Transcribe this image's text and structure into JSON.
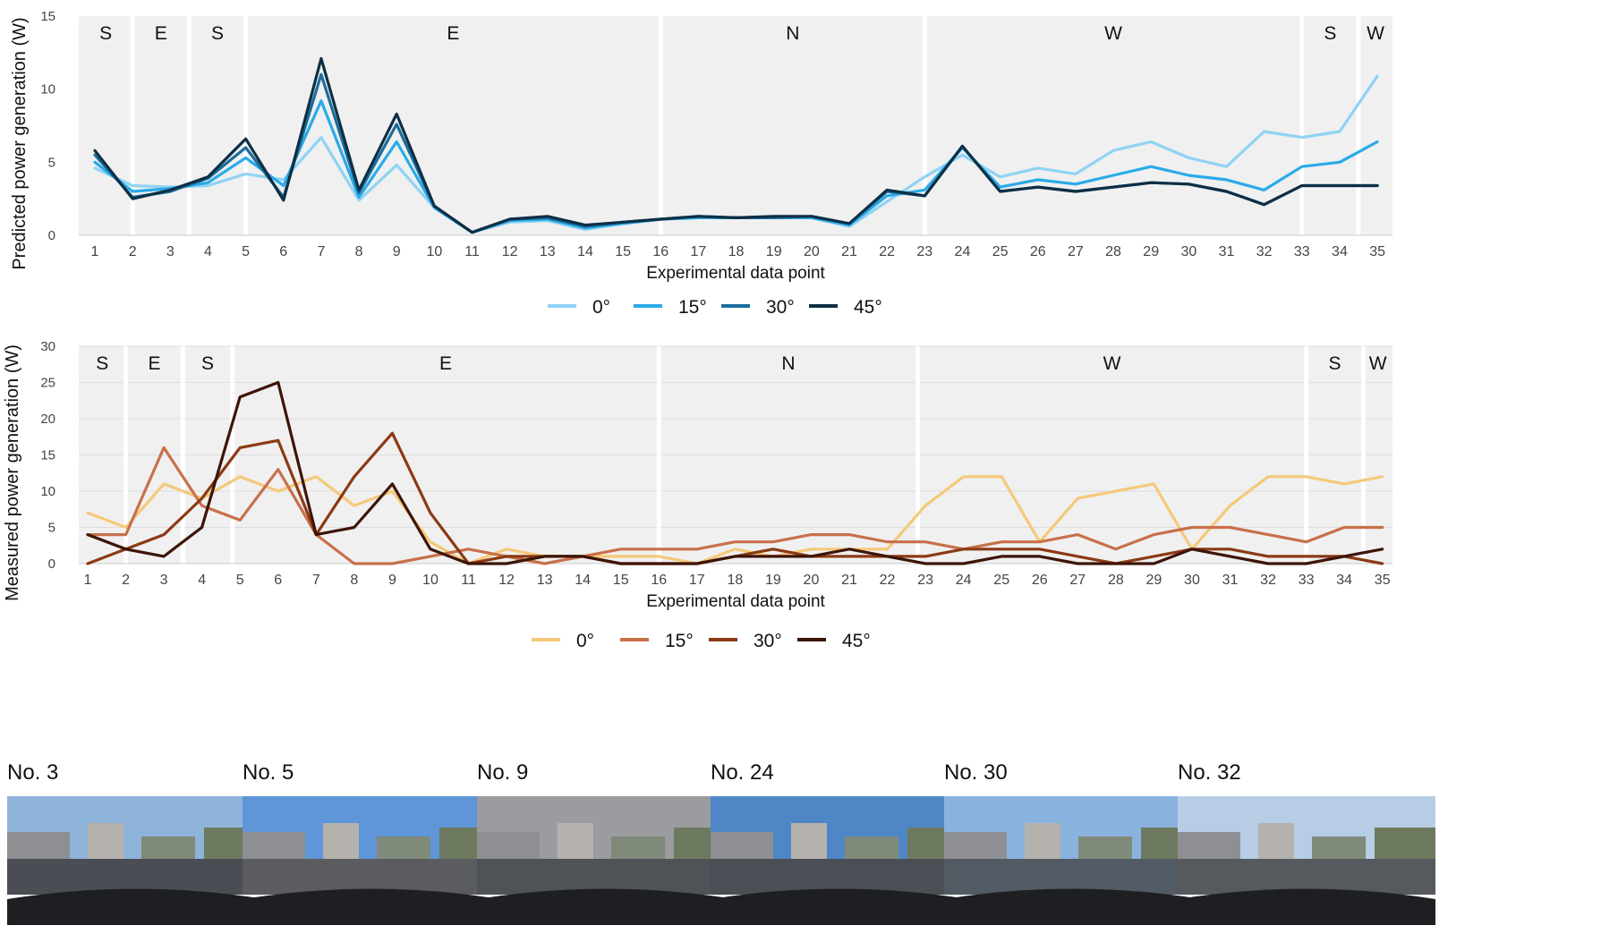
{
  "chart_data": [
    {
      "type": "line",
      "title": "",
      "xlabel": "Experimental data point",
      "ylabel": "Predicted power generation (W)",
      "ylim": [
        0,
        15
      ],
      "yticks": [
        0,
        5,
        10,
        15
      ],
      "grid": false,
      "legend_position": "bottom",
      "x": [
        1,
        2,
        3,
        4,
        5,
        6,
        7,
        8,
        9,
        10,
        11,
        12,
        13,
        14,
        15,
        16,
        17,
        18,
        19,
        20,
        21,
        22,
        23,
        24,
        25,
        26,
        27,
        28,
        29,
        30,
        31,
        32,
        33,
        34,
        35
      ],
      "regions": [
        {
          "label": "S",
          "start": 1,
          "end": 2
        },
        {
          "label": "E",
          "start": 2,
          "end": 3.5
        },
        {
          "label": "S",
          "start": 3.5,
          "end": 5
        },
        {
          "label": "E",
          "start": 5,
          "end": 16
        },
        {
          "label": "N",
          "start": 16,
          "end": 23
        },
        {
          "label": "W",
          "start": 23,
          "end": 33
        },
        {
          "label": "S",
          "start": 33,
          "end": 34.5
        },
        {
          "label": "W",
          "start": 34.5,
          "end": 35.5
        }
      ],
      "series": [
        {
          "name": "0°",
          "color": "#8fd3f4",
          "values": [
            4.6,
            3.4,
            3.3,
            3.4,
            4.2,
            3.8,
            6.7,
            2.4,
            4.8,
            1.9,
            0.2,
            0.9,
            1.0,
            0.4,
            0.8,
            1.1,
            1.2,
            1.2,
            1.2,
            1.2,
            0.6,
            2.3,
            4.0,
            5.5,
            4.0,
            4.6,
            4.2,
            5.8,
            6.4,
            5.3,
            4.7,
            7.1,
            6.7,
            7.1,
            10.9
          ]
        },
        {
          "name": "15°",
          "color": "#2aaae8",
          "values": [
            5.0,
            3.0,
            3.2,
            3.6,
            5.3,
            3.4,
            9.2,
            2.6,
            6.4,
            1.9,
            0.2,
            1.0,
            1.1,
            0.5,
            0.8,
            1.1,
            1.2,
            1.2,
            1.2,
            1.2,
            0.7,
            2.7,
            3.1,
            6.0,
            3.3,
            3.8,
            3.5,
            4.1,
            4.7,
            4.1,
            3.8,
            3.1,
            4.7,
            5.0,
            6.4
          ]
        },
        {
          "name": "30°",
          "color": "#1a6e9c",
          "values": [
            5.5,
            2.6,
            3.0,
            3.9,
            6.0,
            2.6,
            11.0,
            2.9,
            7.6,
            2.0,
            0.2,
            1.1,
            1.2,
            0.6,
            0.9,
            1.1,
            1.3,
            1.2,
            1.2,
            1.3,
            0.8,
            3.0,
            2.7,
            6.1,
            3.0,
            3.3,
            3.0,
            3.3,
            3.6,
            3.5,
            3.0,
            2.1,
            3.4,
            3.4,
            3.4
          ]
        },
        {
          "name": "45°",
          "color": "#0d2f45",
          "values": [
            5.8,
            2.5,
            3.1,
            4.0,
            6.6,
            2.4,
            12.1,
            3.1,
            8.3,
            2.0,
            0.2,
            1.1,
            1.3,
            0.7,
            0.9,
            1.1,
            1.3,
            1.2,
            1.3,
            1.3,
            0.8,
            3.1,
            2.7,
            6.1,
            3.0,
            3.3,
            3.0,
            3.3,
            3.6,
            3.5,
            3.0,
            2.1,
            3.4,
            3.4,
            3.4
          ]
        }
      ]
    },
    {
      "type": "line",
      "title": "",
      "xlabel": "Experimental data point",
      "ylabel": "Measured power generation (W)",
      "ylim": [
        0,
        30
      ],
      "yticks": [
        0,
        5,
        10,
        15,
        20,
        25,
        30
      ],
      "grid": true,
      "legend_position": "bottom",
      "x": [
        1,
        2,
        3,
        4,
        5,
        6,
        7,
        8,
        9,
        10,
        11,
        12,
        13,
        14,
        15,
        16,
        17,
        18,
        19,
        20,
        21,
        22,
        23,
        24,
        25,
        26,
        27,
        28,
        29,
        30,
        31,
        32,
        33,
        34,
        35
      ],
      "regions": [
        {
          "label": "S",
          "start": 1,
          "end": 2
        },
        {
          "label": "E",
          "start": 2,
          "end": 3.5
        },
        {
          "label": "S",
          "start": 3.5,
          "end": 4.8
        },
        {
          "label": "E",
          "start": 4.8,
          "end": 16
        },
        {
          "label": "N",
          "start": 16,
          "end": 22.8
        },
        {
          "label": "W",
          "start": 22.8,
          "end": 33
        },
        {
          "label": "S",
          "start": 33,
          "end": 34.5
        },
        {
          "label": "W",
          "start": 34.5,
          "end": 35.5
        }
      ],
      "series": [
        {
          "name": "0°",
          "color": "#f5c97a",
          "values": [
            7,
            5,
            11,
            9,
            12,
            10,
            12,
            8,
            10,
            3,
            0,
            2,
            1,
            1,
            1,
            1,
            0,
            2,
            1,
            2,
            2,
            2,
            8,
            12,
            12,
            3,
            9,
            10,
            11,
            2,
            8,
            12,
            12,
            11,
            12
          ]
        },
        {
          "name": "15°",
          "color": "#c8704a",
          "values": [
            4,
            4,
            16,
            8,
            6,
            13,
            4,
            0,
            0,
            1,
            2,
            1,
            0,
            1,
            2,
            2,
            2,
            3,
            3,
            4,
            4,
            3,
            3,
            2,
            3,
            3,
            4,
            2,
            4,
            5,
            5,
            4,
            3,
            5,
            5
          ]
        },
        {
          "name": "30°",
          "color": "#8b3a14",
          "values": [
            0,
            2,
            4,
            9,
            16,
            17,
            4,
            12,
            18,
            7,
            0,
            1,
            1,
            1,
            0,
            0,
            0,
            1,
            2,
            1,
            1,
            1,
            1,
            2,
            2,
            2,
            1,
            0,
            1,
            2,
            2,
            1,
            1,
            1,
            0
          ]
        },
        {
          "name": "45°",
          "color": "#3d1408",
          "values": [
            4,
            2,
            1,
            5,
            23,
            25,
            4,
            5,
            11,
            2,
            0,
            0,
            1,
            1,
            0,
            0,
            0,
            1,
            1,
            1,
            2,
            1,
            0,
            0,
            1,
            1,
            0,
            0,
            0,
            2,
            1,
            0,
            0,
            1,
            2
          ]
        }
      ]
    }
  ],
  "photos": [
    {
      "label": "No. 3",
      "sky": "#8fb4da",
      "ground": "#4a4e54"
    },
    {
      "label": "No. 5",
      "sky": "#5f96d8",
      "ground": "#5a5c60"
    },
    {
      "label": "No. 9",
      "sky": "#9a9ca0",
      "ground": "#4f5257"
    },
    {
      "label": "No. 24",
      "sky": "#4f86c6",
      "ground": "#4b4e55"
    },
    {
      "label": "No. 30",
      "sky": "#8ab2de",
      "ground": "#525a63"
    },
    {
      "label": "No. 32",
      "sky": "#b7cde6",
      "ground": "#56595d"
    }
  ]
}
